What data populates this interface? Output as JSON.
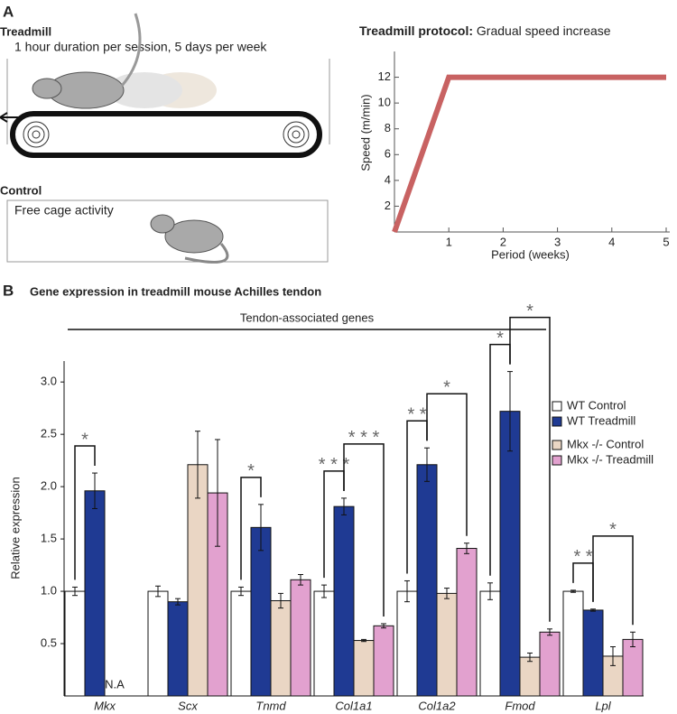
{
  "panel_a": {
    "label": "A",
    "treadmill": {
      "title": "Treadmill",
      "note": "1 hour duration per session, 5 days per week"
    },
    "control": {
      "title": "Control",
      "note": "Free cage activity"
    }
  },
  "panel_b": {
    "label": "B",
    "group_label": "Tendon-associated genes"
  },
  "chart_data": [
    {
      "type": "line",
      "title": "Treadmill protocol:",
      "subtitle": "Gradual speed increase",
      "x_label": "Period (weeks)",
      "y_label": "Speed (m/min)",
      "x": [
        0,
        1,
        5
      ],
      "values": [
        0,
        12,
        12
      ],
      "color": "#c86262",
      "xlim": [
        0,
        5
      ],
      "xticks": [
        1,
        2,
        3,
        4,
        5
      ],
      "ylim": [
        0,
        14
      ],
      "yticks": [
        2,
        4,
        6,
        8,
        10,
        12
      ]
    },
    {
      "type": "bar",
      "title": "Gene expression in treadmill mouse Achilles tendon",
      "y_label": "Relative expression",
      "categories": [
        "Mkx",
        "Scx",
        "Tnmd",
        "Col1a1",
        "Col1a2",
        "Fmod",
        "Lpl"
      ],
      "series": [
        {
          "name": "WT Control",
          "color": "#ffffff",
          "values": [
            1.0,
            1.0,
            1.0,
            1.0,
            1.0,
            1.0,
            1.0
          ],
          "errors": [
            0.04,
            0.05,
            0.04,
            0.06,
            0.1,
            0.08,
            0.01
          ]
        },
        {
          "name": "WT Treadmill",
          "color": "#1f3a93",
          "values": [
            1.96,
            0.9,
            1.61,
            1.81,
            2.21,
            2.72,
            0.82
          ],
          "errors": [
            0.17,
            0.03,
            0.22,
            0.08,
            0.16,
            0.38,
            0.01
          ]
        },
        {
          "name": "Mkx -/- Control",
          "color": "#ead6c4",
          "values": [
            null,
            2.21,
            0.91,
            0.53,
            0.98,
            0.37,
            0.38
          ],
          "errors": [
            null,
            0.32,
            0.07,
            0.01,
            0.05,
            0.04,
            0.09
          ]
        },
        {
          "name": "Mkx -/- Treadmill",
          "color": "#e2a1cf",
          "values": [
            null,
            1.94,
            1.11,
            0.67,
            1.41,
            0.61,
            0.54
          ],
          "errors": [
            null,
            0.51,
            0.05,
            0.02,
            0.05,
            0.03,
            0.07
          ]
        }
      ],
      "annotations": [
        {
          "text": "N.A",
          "category": 0,
          "series": 2
        }
      ],
      "significance": [
        {
          "category": 0,
          "from": 0,
          "to": 1,
          "label": "*"
        },
        {
          "category": 2,
          "from": 0,
          "to": 1,
          "label": "*"
        },
        {
          "category": 3,
          "from": 0,
          "to": 1,
          "label": "* * *"
        },
        {
          "category": 3,
          "from": 1,
          "to": 3,
          "label": "* * *"
        },
        {
          "category": 4,
          "from": 0,
          "to": 1,
          "label": "* *"
        },
        {
          "category": 4,
          "from": 1,
          "to": 3,
          "label": "*"
        },
        {
          "category": 5,
          "from": 0,
          "to": 1,
          "label": "*"
        },
        {
          "category": 5,
          "from": 1,
          "to": 3,
          "label": "*"
        },
        {
          "category": 6,
          "from": 0,
          "to": 1,
          "label": "* *"
        },
        {
          "category": 6,
          "from": 1,
          "to": 3,
          "label": "*"
        }
      ],
      "ylim": [
        0,
        3.2
      ],
      "yticks": [
        0.5,
        {
          "value": 1,
          "label": "1.0"
        },
        1.5,
        {
          "value": 2,
          "label": "2.0"
        },
        2.5,
        {
          "value": 3,
          "label": "3.0"
        }
      ],
      "legend": "right"
    }
  ]
}
